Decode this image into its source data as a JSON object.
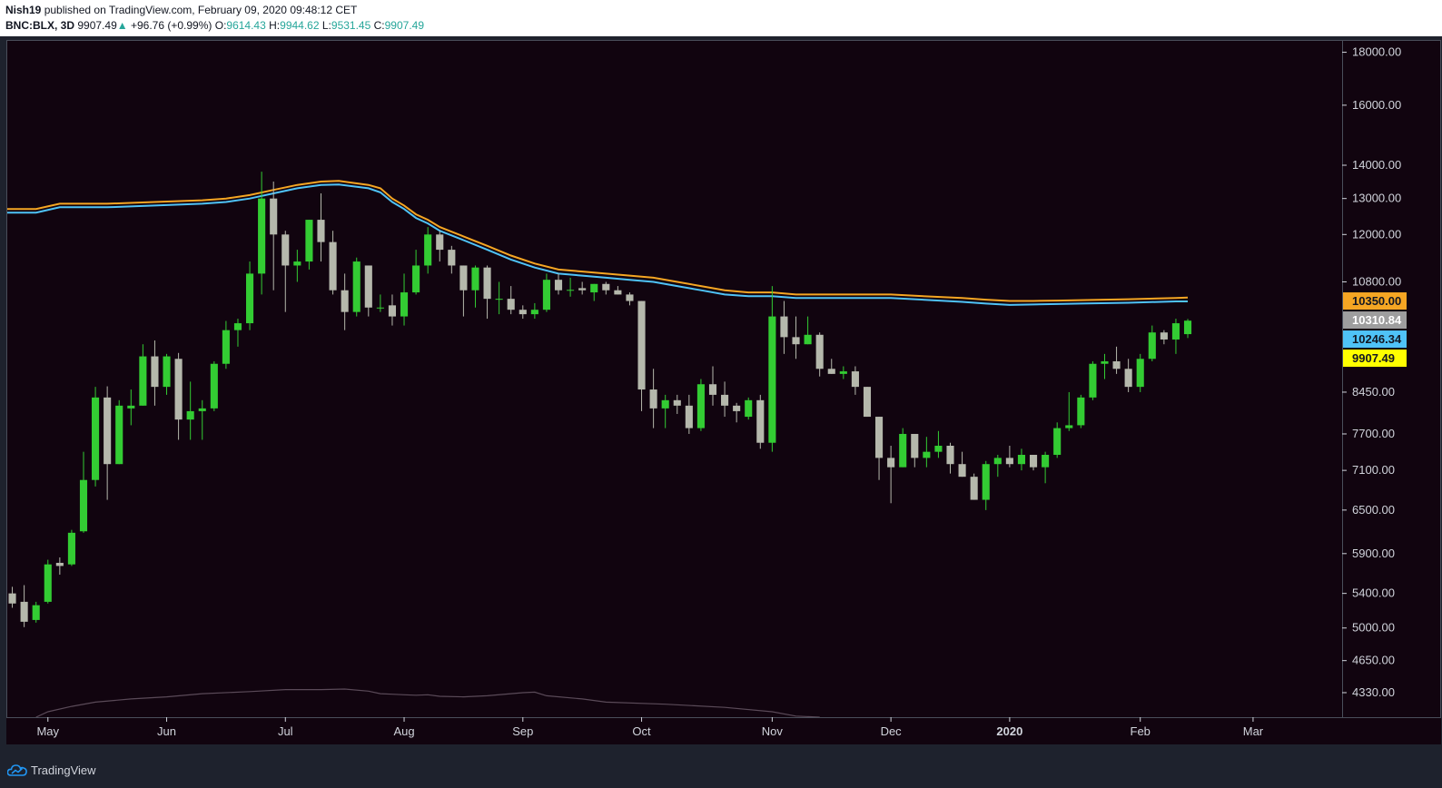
{
  "header": {
    "author": "Nish19",
    "published_text": "published on TradingView.com, February 09, 2020 09:48:12 CET",
    "symbol": "BNC:BLX, 3D",
    "last": "9907.49",
    "change_arrow": "▲",
    "change": "+96.76 (+0.99%)",
    "o_label": "O:",
    "o_value": "9614.43",
    "h_label": "H:",
    "h_value": "9944.62",
    "l_label": "L:",
    "l_value": "9531.45",
    "c_label": "C:",
    "c_value": "9907.49"
  },
  "footer": {
    "brand": "TradingView",
    "logo_icon": "tradingview-cloud-icon"
  },
  "colors": {
    "background": "#11040f",
    "up_candle": "#33cc33",
    "down_candle": "#b5b8ac",
    "ema_orange": "#f5a623",
    "ema_blue": "#4fc3f7",
    "volume_line": "#5a4a58",
    "axis_text": "#d1d4dc",
    "price_badge_orange": "#f5a623",
    "price_badge_gray": "#9e9e9e",
    "price_badge_blue": "#4fc3f7",
    "price_badge_yellow": "#ffff00"
  },
  "chart_data": {
    "type": "candlestick",
    "timeframe": "3D",
    "y_scale": "log",
    "ylim": [
      4100,
      18500
    ],
    "y_ticks": [
      18000,
      16000,
      14000,
      13000,
      12000,
      10800,
      8450,
      7700,
      7100,
      6500,
      5900,
      5400,
      5000,
      4650,
      4330
    ],
    "y_tick_labels": [
      "18000.00",
      "16000.00",
      "14000.00",
      "13000.00",
      "12000.00",
      "10800.00",
      "8450.00",
      "7700.00",
      "7100.00",
      "6500.00",
      "5900.00",
      "5400.00",
      "5000.00",
      "4650.00",
      "4330.00"
    ],
    "x_labels": [
      {
        "label": "May",
        "bar": 3
      },
      {
        "label": "Jun",
        "bar": 13
      },
      {
        "label": "Jul",
        "bar": 23
      },
      {
        "label": "Aug",
        "bar": 33
      },
      {
        "label": "Sep",
        "bar": 43
      },
      {
        "label": "Oct",
        "bar": 53
      },
      {
        "label": "Nov",
        "bar": 64
      },
      {
        "label": "Dec",
        "bar": 74
      },
      {
        "label": "2020",
        "bar": 84,
        "bold": true
      },
      {
        "label": "Feb",
        "bar": 95
      },
      {
        "label": "Mar",
        "bar": 104.5
      }
    ],
    "bars_visible_range": [
      -0.5,
      112
    ],
    "candles": [
      {
        "o": 5400,
        "h": 5480,
        "l": 5230,
        "c": 5280
      },
      {
        "o": 5300,
        "h": 5500,
        "l": 5010,
        "c": 5070
      },
      {
        "o": 5090,
        "h": 5300,
        "l": 5060,
        "c": 5260
      },
      {
        "o": 5300,
        "h": 5820,
        "l": 5280,
        "c": 5760
      },
      {
        "o": 5780,
        "h": 5850,
        "l": 5630,
        "c": 5740
      },
      {
        "o": 5760,
        "h": 6220,
        "l": 5740,
        "c": 6180
      },
      {
        "o": 6200,
        "h": 7400,
        "l": 6180,
        "c": 6950
      },
      {
        "o": 6950,
        "h": 8550,
        "l": 6850,
        "c": 8350
      },
      {
        "o": 8350,
        "h": 8560,
        "l": 6650,
        "c": 7200
      },
      {
        "o": 7200,
        "h": 8300,
        "l": 7200,
        "c": 8200
      },
      {
        "o": 8150,
        "h": 8500,
        "l": 7850,
        "c": 8200
      },
      {
        "o": 8200,
        "h": 9400,
        "l": 8200,
        "c": 9150
      },
      {
        "o": 9150,
        "h": 9480,
        "l": 8200,
        "c": 8550
      },
      {
        "o": 8550,
        "h": 9200,
        "l": 8400,
        "c": 9150
      },
      {
        "o": 9100,
        "h": 9220,
        "l": 7600,
        "c": 7950
      },
      {
        "o": 7950,
        "h": 8650,
        "l": 7600,
        "c": 8100
      },
      {
        "o": 8100,
        "h": 8300,
        "l": 7600,
        "c": 8150
      },
      {
        "o": 8150,
        "h": 9050,
        "l": 8100,
        "c": 9000
      },
      {
        "o": 9000,
        "h": 9900,
        "l": 8900,
        "c": 9700
      },
      {
        "o": 9700,
        "h": 9950,
        "l": 9350,
        "c": 9850
      },
      {
        "o": 9850,
        "h": 11300,
        "l": 9700,
        "c": 11000
      },
      {
        "o": 11000,
        "h": 13800,
        "l": 10500,
        "c": 13000
      },
      {
        "o": 13000,
        "h": 13500,
        "l": 10600,
        "c": 12000
      },
      {
        "o": 12000,
        "h": 12100,
        "l": 10100,
        "c": 11200
      },
      {
        "o": 11200,
        "h": 11600,
        "l": 10800,
        "c": 11300
      },
      {
        "o": 11300,
        "h": 12400,
        "l": 11100,
        "c": 12400
      },
      {
        "o": 12400,
        "h": 13150,
        "l": 11300,
        "c": 11800
      },
      {
        "o": 11800,
        "h": 12100,
        "l": 10500,
        "c": 10600
      },
      {
        "o": 10600,
        "h": 11000,
        "l": 9700,
        "c": 10100
      },
      {
        "o": 10100,
        "h": 11400,
        "l": 10000,
        "c": 11300
      },
      {
        "o": 11200,
        "h": 11200,
        "l": 10000,
        "c": 10200
      },
      {
        "o": 10200,
        "h": 10500,
        "l": 10100,
        "c": 10200
      },
      {
        "o": 10250,
        "h": 10500,
        "l": 9800,
        "c": 10000
      },
      {
        "o": 10000,
        "h": 11000,
        "l": 9800,
        "c": 10550
      },
      {
        "o": 10550,
        "h": 11600,
        "l": 10500,
        "c": 11200
      },
      {
        "o": 11200,
        "h": 12200,
        "l": 11000,
        "c": 12000
      },
      {
        "o": 12000,
        "h": 12100,
        "l": 11300,
        "c": 11600
      },
      {
        "o": 11600,
        "h": 11700,
        "l": 11000,
        "c": 11200
      },
      {
        "o": 11200,
        "h": 11200,
        "l": 10000,
        "c": 10600
      },
      {
        "o": 10600,
        "h": 11200,
        "l": 10200,
        "c": 11150
      },
      {
        "o": 11150,
        "h": 11200,
        "l": 9950,
        "c": 10400
      },
      {
        "o": 10400,
        "h": 10800,
        "l": 10050,
        "c": 10400
      },
      {
        "o": 10400,
        "h": 10700,
        "l": 10050,
        "c": 10150
      },
      {
        "o": 10150,
        "h": 10250,
        "l": 9950,
        "c": 10050
      },
      {
        "o": 10050,
        "h": 10300,
        "l": 9950,
        "c": 10150
      },
      {
        "o": 10150,
        "h": 11000,
        "l": 10100,
        "c": 10850
      },
      {
        "o": 10850,
        "h": 11000,
        "l": 10500,
        "c": 10600
      },
      {
        "o": 10600,
        "h": 10900,
        "l": 10450,
        "c": 10610
      },
      {
        "o": 10650,
        "h": 10800,
        "l": 10500,
        "c": 10600
      },
      {
        "o": 10550,
        "h": 10750,
        "l": 10350,
        "c": 10750
      },
      {
        "o": 10750,
        "h": 10800,
        "l": 10500,
        "c": 10600
      },
      {
        "o": 10600,
        "h": 10700,
        "l": 10500,
        "c": 10500
      },
      {
        "o": 10500,
        "h": 10550,
        "l": 10250,
        "c": 10350
      },
      {
        "o": 10350,
        "h": 10350,
        "l": 8100,
        "c": 8500
      },
      {
        "o": 8500,
        "h": 8900,
        "l": 7800,
        "c": 8150
      },
      {
        "o": 8150,
        "h": 8400,
        "l": 7800,
        "c": 8300
      },
      {
        "o": 8300,
        "h": 8400,
        "l": 8050,
        "c": 8200
      },
      {
        "o": 8200,
        "h": 8400,
        "l": 7700,
        "c": 7800
      },
      {
        "o": 7800,
        "h": 8700,
        "l": 7750,
        "c": 8600
      },
      {
        "o": 8600,
        "h": 8950,
        "l": 8200,
        "c": 8400
      },
      {
        "o": 8400,
        "h": 8650,
        "l": 8000,
        "c": 8200
      },
      {
        "o": 8200,
        "h": 8250,
        "l": 7900,
        "c": 8100
      },
      {
        "o": 8000,
        "h": 8350,
        "l": 7950,
        "c": 8300
      },
      {
        "o": 8300,
        "h": 8400,
        "l": 7450,
        "c": 7550
      },
      {
        "o": 7550,
        "h": 10700,
        "l": 7400,
        "c": 10000
      },
      {
        "o": 10000,
        "h": 10350,
        "l": 9200,
        "c": 9550
      },
      {
        "o": 9550,
        "h": 10000,
        "l": 9100,
        "c": 9400
      },
      {
        "o": 9400,
        "h": 10000,
        "l": 9400,
        "c": 9600
      },
      {
        "o": 9600,
        "h": 9650,
        "l": 8750,
        "c": 8900
      },
      {
        "o": 8900,
        "h": 9100,
        "l": 8800,
        "c": 8800
      },
      {
        "o": 8800,
        "h": 8950,
        "l": 8700,
        "c": 8850
      },
      {
        "o": 8850,
        "h": 8950,
        "l": 8400,
        "c": 8550
      },
      {
        "o": 8550,
        "h": 8550,
        "l": 8000,
        "c": 8000
      },
      {
        "o": 8000,
        "h": 8000,
        "l": 6950,
        "c": 7300
      },
      {
        "o": 7300,
        "h": 7500,
        "l": 6600,
        "c": 7150
      },
      {
        "o": 7150,
        "h": 7800,
        "l": 7150,
        "c": 7700
      },
      {
        "o": 7700,
        "h": 7700,
        "l": 7150,
        "c": 7300
      },
      {
        "o": 7300,
        "h": 7650,
        "l": 7150,
        "c": 7400
      },
      {
        "o": 7400,
        "h": 7750,
        "l": 7300,
        "c": 7500
      },
      {
        "o": 7500,
        "h": 7550,
        "l": 7050,
        "c": 7200
      },
      {
        "o": 7200,
        "h": 7400,
        "l": 7000,
        "c": 7000
      },
      {
        "o": 7000,
        "h": 7050,
        "l": 6650,
        "c": 6650
      },
      {
        "o": 6650,
        "h": 7250,
        "l": 6500,
        "c": 7200
      },
      {
        "o": 7200,
        "h": 7350,
        "l": 7000,
        "c": 7300
      },
      {
        "o": 7300,
        "h": 7500,
        "l": 7150,
        "c": 7200
      },
      {
        "o": 7200,
        "h": 7450,
        "l": 7100,
        "c": 7350
      },
      {
        "o": 7350,
        "h": 7350,
        "l": 7100,
        "c": 7150
      },
      {
        "o": 7150,
        "h": 7400,
        "l": 6900,
        "c": 7350
      },
      {
        "o": 7350,
        "h": 7900,
        "l": 7300,
        "c": 7800
      },
      {
        "o": 7800,
        "h": 8450,
        "l": 7750,
        "c": 7850
      },
      {
        "o": 7850,
        "h": 8400,
        "l": 7800,
        "c": 8350
      },
      {
        "o": 8350,
        "h": 9050,
        "l": 8300,
        "c": 9000
      },
      {
        "o": 9000,
        "h": 9200,
        "l": 8700,
        "c": 9050
      },
      {
        "o": 9050,
        "h": 9350,
        "l": 8800,
        "c": 8900
      },
      {
        "o": 8900,
        "h": 9100,
        "l": 8450,
        "c": 8550
      },
      {
        "o": 8550,
        "h": 9200,
        "l": 8450,
        "c": 9100
      },
      {
        "o": 9100,
        "h": 9800,
        "l": 9050,
        "c": 9650
      },
      {
        "o": 9650,
        "h": 9700,
        "l": 9400,
        "c": 9500
      },
      {
        "o": 9500,
        "h": 9950,
        "l": 9200,
        "c": 9850
      },
      {
        "o": 9614,
        "h": 9945,
        "l": 9531,
        "c": 9907
      }
    ],
    "ema_orange": [
      [
        -0.5,
        12700
      ],
      [
        2,
        12700
      ],
      [
        4,
        12850
      ],
      [
        8,
        12850
      ],
      [
        12,
        12900
      ],
      [
        16,
        12950
      ],
      [
        18,
        13000
      ],
      [
        20,
        13100
      ],
      [
        22,
        13250
      ],
      [
        24,
        13400
      ],
      [
        26,
        13500
      ],
      [
        27.5,
        13520
      ],
      [
        30,
        13400
      ],
      [
        31,
        13300
      ],
      [
        32,
        13000
      ],
      [
        33,
        12800
      ],
      [
        34,
        12550
      ],
      [
        35,
        12400
      ],
      [
        36,
        12200
      ],
      [
        38,
        11950
      ],
      [
        40,
        11700
      ],
      [
        42,
        11450
      ],
      [
        44,
        11250
      ],
      [
        46,
        11100
      ],
      [
        48,
        11050
      ],
      [
        50,
        11000
      ],
      [
        52,
        10950
      ],
      [
        54,
        10900
      ],
      [
        56,
        10800
      ],
      [
        58,
        10700
      ],
      [
        60,
        10600
      ],
      [
        62,
        10550
      ],
      [
        64,
        10550
      ],
      [
        66,
        10500
      ],
      [
        68,
        10500
      ],
      [
        72,
        10500
      ],
      [
        74,
        10500
      ],
      [
        76,
        10470
      ],
      [
        80,
        10420
      ],
      [
        82,
        10380
      ],
      [
        84,
        10350
      ],
      [
        86,
        10350
      ],
      [
        88,
        10360
      ],
      [
        90,
        10370
      ],
      [
        94,
        10390
      ],
      [
        98,
        10420
      ],
      [
        99,
        10430
      ]
    ],
    "ema_blue": [
      [
        -0.5,
        12600
      ],
      [
        2,
        12600
      ],
      [
        4,
        12750
      ],
      [
        8,
        12750
      ],
      [
        12,
        12800
      ],
      [
        16,
        12850
      ],
      [
        18,
        12900
      ],
      [
        20,
        13000
      ],
      [
        22,
        13150
      ],
      [
        24,
        13300
      ],
      [
        26,
        13400
      ],
      [
        27.5,
        13410
      ],
      [
        30,
        13300
      ],
      [
        31,
        13180
      ],
      [
        32,
        12900
      ],
      [
        33,
        12700
      ],
      [
        34,
        12450
      ],
      [
        35,
        12300
      ],
      [
        36,
        12100
      ],
      [
        38,
        11850
      ],
      [
        40,
        11600
      ],
      [
        42,
        11350
      ],
      [
        44,
        11150
      ],
      [
        46,
        11000
      ],
      [
        48,
        10950
      ],
      [
        50,
        10900
      ],
      [
        52,
        10850
      ],
      [
        54,
        10800
      ],
      [
        56,
        10700
      ],
      [
        58,
        10600
      ],
      [
        60,
        10500
      ],
      [
        62,
        10460
      ],
      [
        64,
        10460
      ],
      [
        66,
        10420
      ],
      [
        68,
        10420
      ],
      [
        72,
        10420
      ],
      [
        74,
        10420
      ],
      [
        76,
        10390
      ],
      [
        80,
        10330
      ],
      [
        82,
        10290
      ],
      [
        84,
        10260
      ],
      [
        86,
        10270
      ],
      [
        88,
        10280
      ],
      [
        90,
        10290
      ],
      [
        94,
        10310
      ],
      [
        98,
        10340
      ],
      [
        99,
        10340
      ]
    ],
    "volume_line": [
      [
        2,
        4100
      ],
      [
        3,
        4150
      ],
      [
        5,
        4200
      ],
      [
        7,
        4240
      ],
      [
        10,
        4270
      ],
      [
        13,
        4290
      ],
      [
        16,
        4320
      ],
      [
        20,
        4340
      ],
      [
        23,
        4360
      ],
      [
        26,
        4360
      ],
      [
        28,
        4365
      ],
      [
        30,
        4345
      ],
      [
        31,
        4320
      ],
      [
        32,
        4315
      ],
      [
        33,
        4310
      ],
      [
        34,
        4305
      ],
      [
        35,
        4310
      ],
      [
        36,
        4295
      ],
      [
        38,
        4290
      ],
      [
        40,
        4300
      ],
      [
        42,
        4320
      ],
      [
        43,
        4330
      ],
      [
        44,
        4335
      ],
      [
        45,
        4300
      ],
      [
        48,
        4270
      ],
      [
        50,
        4240
      ],
      [
        55,
        4220
      ],
      [
        60,
        4190
      ],
      [
        64,
        4150
      ],
      [
        66,
        4110
      ],
      [
        68,
        4100
      ]
    ],
    "price_badges": [
      {
        "label": "10350.00",
        "value": 10350,
        "color_key": "price_badge_orange",
        "text_color": "#131722"
      },
      {
        "label": "10310.84",
        "value": 10310.84,
        "color_key": "price_badge_gray",
        "text_color": "#ffffff"
      },
      {
        "label": "10246.34",
        "value": 10246.34,
        "color_key": "price_badge_blue",
        "text_color": "#131722"
      },
      {
        "label": "9907.49",
        "value": 9907.49,
        "color_key": "price_badge_yellow",
        "text_color": "#131722"
      }
    ]
  }
}
